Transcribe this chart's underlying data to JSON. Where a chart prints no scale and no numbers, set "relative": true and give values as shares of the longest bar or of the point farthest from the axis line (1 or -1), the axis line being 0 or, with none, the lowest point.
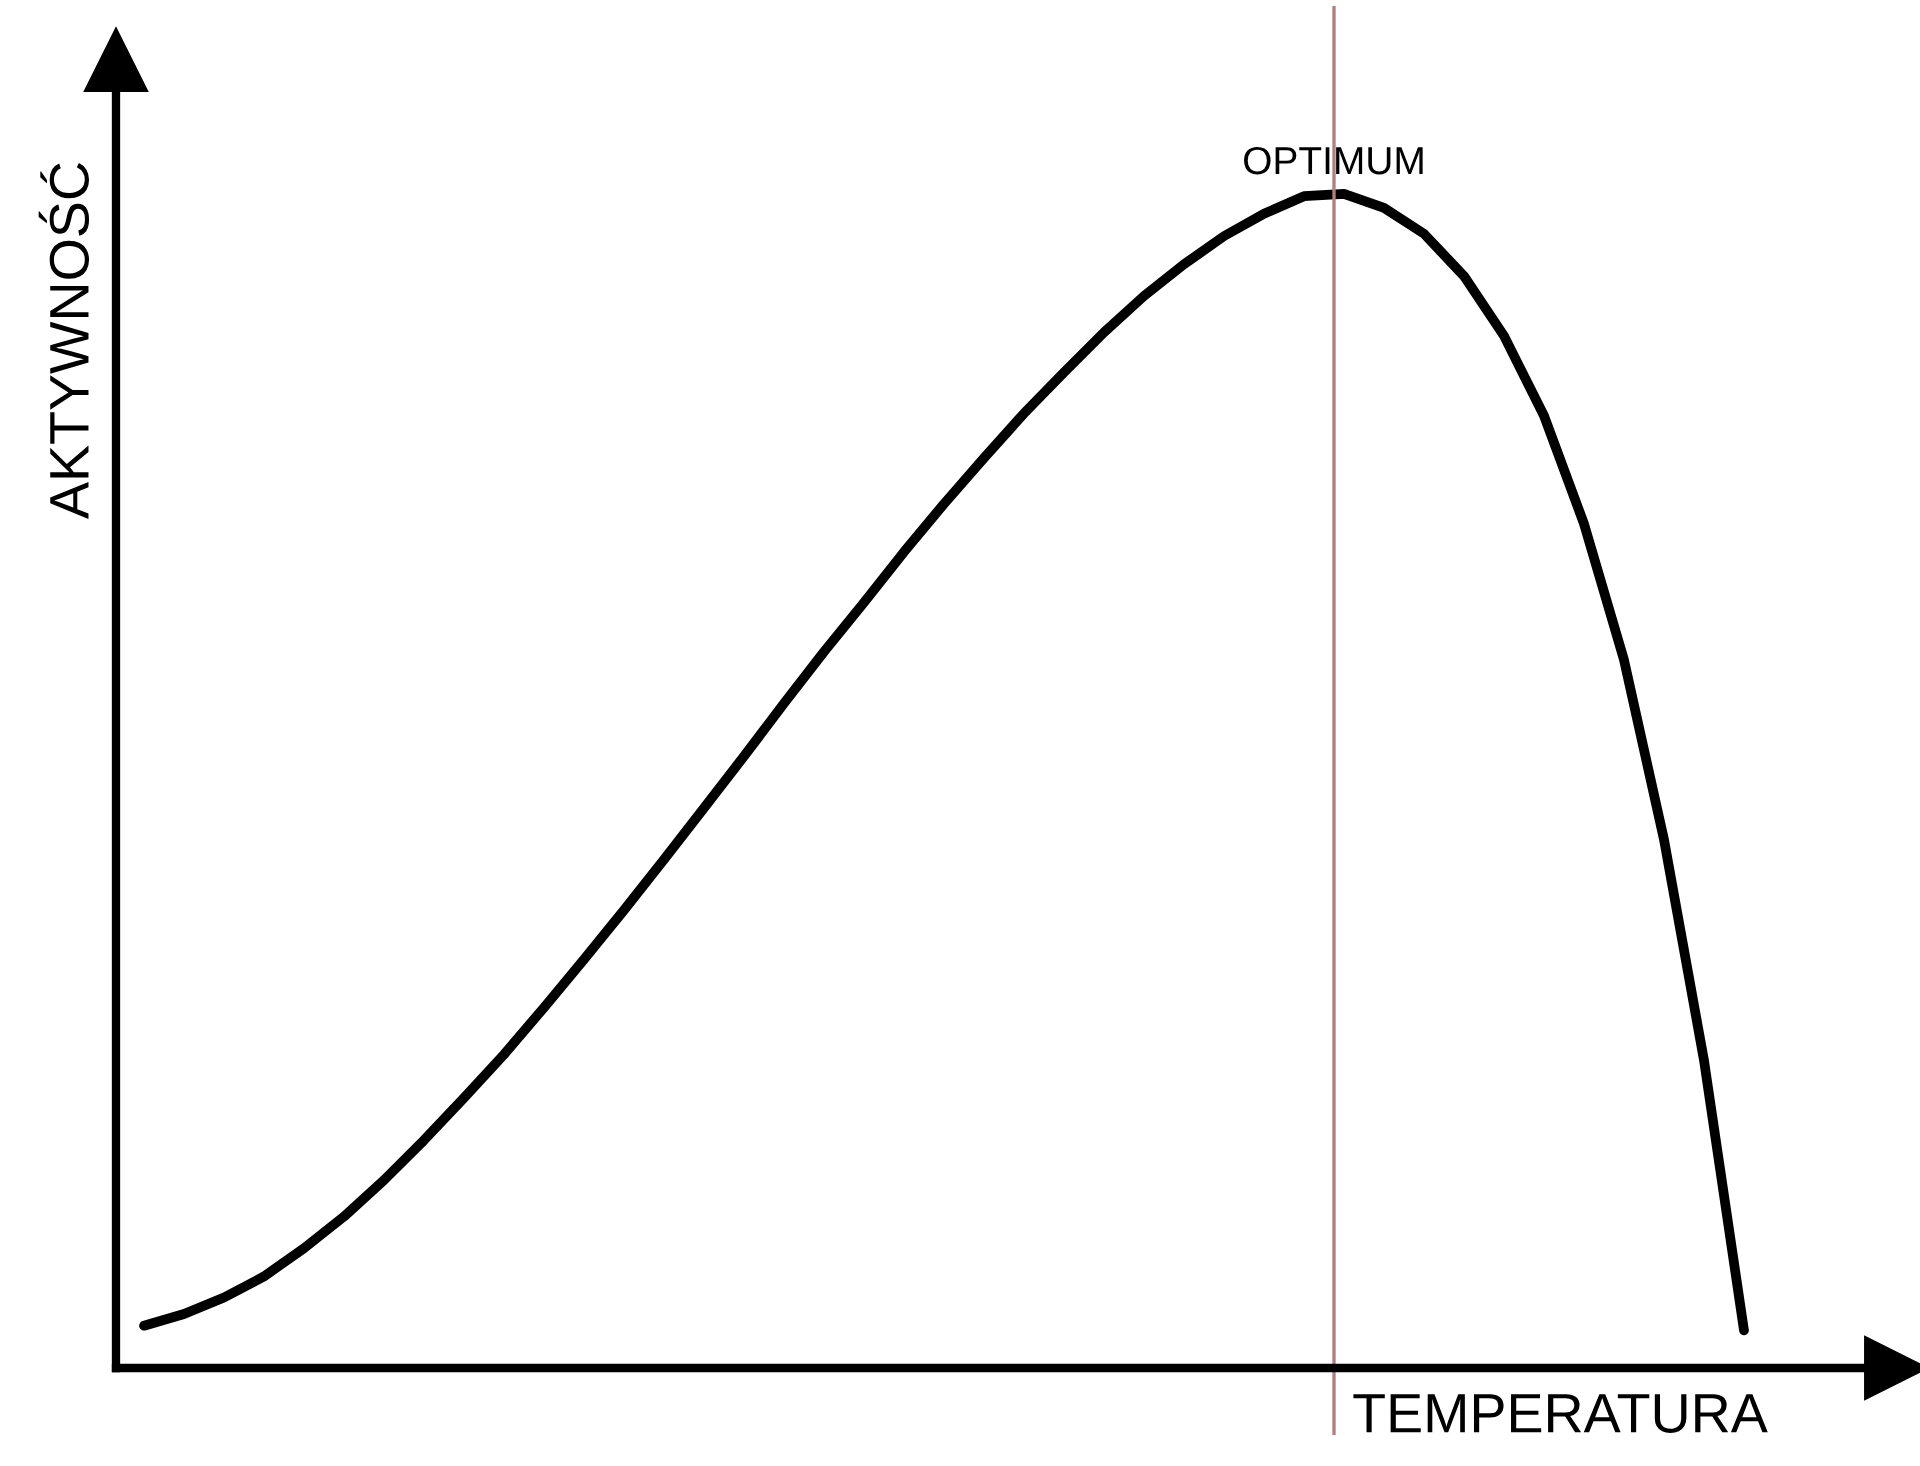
{
  "chart_data": {
    "type": "line",
    "relative": true,
    "xlabel": "TEMPERATURA",
    "ylabel": "AKTYWNOŚĆ",
    "categories": [
      null,
      null,
      null,
      null,
      null,
      null,
      null,
      null,
      null,
      null,
      null,
      null,
      null,
      null,
      null,
      null,
      null,
      null,
      null,
      null,
      null,
      null,
      null,
      null,
      null,
      null,
      null,
      null,
      null,
      null,
      null,
      null,
      null,
      null,
      null,
      null,
      null,
      null,
      null,
      null,
      null
    ],
    "series": [
      {
        "color": "#000000",
        "values": [
          0.036,
          0.046,
          0.06,
          0.078,
          0.102,
          0.129,
          0.16,
          0.194,
          0.23,
          0.267,
          0.307,
          0.348,
          0.39,
          0.433,
          0.477,
          0.521,
          0.566,
          0.61,
          0.652,
          0.695,
          0.736,
          0.775,
          0.813,
          0.848,
          0.882,
          0.913,
          0.94,
          0.964,
          0.983,
          0.998,
          1.0,
          0.988,
          0.966,
          0.93,
          0.879,
          0.811,
          0.719,
          0.603,
          0.45,
          0.262,
          0.032
        ]
      }
    ],
    "annotations": [
      "OPTIMUM"
    ],
    "marker": "none",
    "line_style": "solid"
  }
}
